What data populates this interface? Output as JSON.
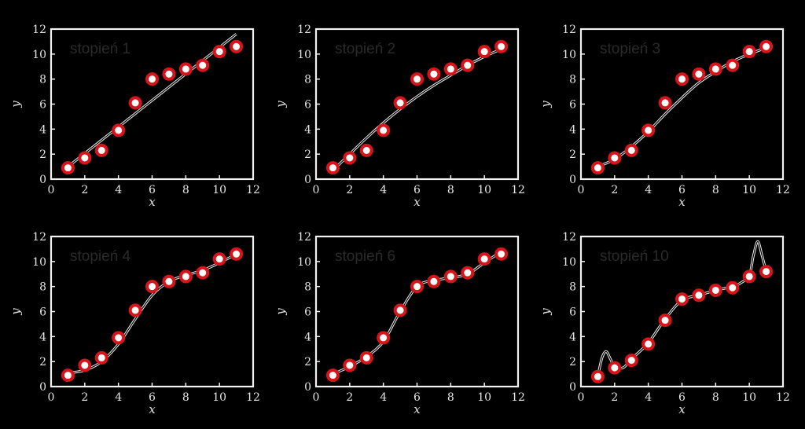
{
  "chart_data": [
    {
      "type": "line",
      "title": "stopień 1",
      "xlabel": "x",
      "ylabel": "y",
      "xlim": [
        0,
        12
      ],
      "ylim": [
        0,
        12
      ],
      "xticks": [
        0,
        2,
        4,
        6,
        8,
        10,
        12
      ],
      "yticks": [
        0,
        2,
        4,
        6,
        8,
        10,
        12
      ],
      "points": {
        "x": [
          1,
          2,
          3,
          4,
          5,
          6,
          7,
          8,
          9,
          10,
          11
        ],
        "y": [
          0.9,
          1.7,
          2.3,
          3.9,
          6.1,
          8.0,
          8.4,
          8.8,
          9.1,
          10.2,
          10.6
        ]
      },
      "fit": {
        "x": [
          1,
          11
        ],
        "y": [
          1.0,
          11.6
        ]
      }
    },
    {
      "type": "line",
      "title": "stopień 2",
      "xlabel": "x",
      "ylabel": "y",
      "xlim": [
        0,
        12
      ],
      "ylim": [
        0,
        12
      ],
      "xticks": [
        0,
        2,
        4,
        6,
        8,
        10,
        12
      ],
      "yticks": [
        0,
        2,
        4,
        6,
        8,
        10,
        12
      ],
      "points": {
        "x": [
          1,
          2,
          3,
          4,
          5,
          6,
          7,
          8,
          9,
          10,
          11
        ],
        "y": [
          0.9,
          1.7,
          2.3,
          3.9,
          6.1,
          8.0,
          8.4,
          8.8,
          9.1,
          10.2,
          10.6
        ]
      },
      "fit": {
        "x": [
          1,
          2,
          3,
          4,
          5,
          6,
          7,
          8,
          9,
          10,
          11
        ],
        "y": [
          0.7,
          2.0,
          3.3,
          4.5,
          5.6,
          6.6,
          7.5,
          8.3,
          9.1,
          9.8,
          10.4
        ]
      }
    },
    {
      "type": "line",
      "title": "stopień 3",
      "xlabel": "x",
      "ylabel": "y",
      "xlim": [
        0,
        12
      ],
      "ylim": [
        0,
        12
      ],
      "xticks": [
        0,
        2,
        4,
        6,
        8,
        10,
        12
      ],
      "yticks": [
        0,
        2,
        4,
        6,
        8,
        10,
        12
      ],
      "points": {
        "x": [
          1,
          2,
          3,
          4,
          5,
          6,
          7,
          8,
          9,
          10,
          11
        ],
        "y": [
          0.9,
          1.7,
          2.3,
          3.9,
          6.1,
          8.0,
          8.4,
          8.8,
          9.1,
          10.2,
          10.6
        ]
      },
      "fit": {
        "x": [
          1,
          2,
          3,
          4,
          5,
          6,
          7,
          8,
          9,
          10,
          11
        ],
        "y": [
          1.0,
          1.6,
          2.6,
          3.8,
          5.2,
          6.5,
          7.7,
          8.6,
          9.4,
          10.0,
          10.5
        ]
      }
    },
    {
      "type": "line",
      "title": "stopień 4",
      "xlabel": "x",
      "ylabel": "y",
      "xlim": [
        0,
        12
      ],
      "ylim": [
        0,
        12
      ],
      "xticks": [
        0,
        2,
        4,
        6,
        8,
        10,
        12
      ],
      "yticks": [
        0,
        2,
        4,
        6,
        8,
        10,
        12
      ],
      "points": {
        "x": [
          1,
          2,
          3,
          4,
          5,
          6,
          7,
          8,
          9,
          10,
          11
        ],
        "y": [
          0.9,
          1.7,
          2.3,
          3.9,
          6.1,
          8.0,
          8.4,
          8.8,
          9.1,
          10.2,
          10.6
        ]
      },
      "fit": {
        "x": [
          1,
          2,
          3,
          4,
          5,
          6,
          7,
          8,
          9,
          10,
          11
        ],
        "y": [
          1.1,
          1.3,
          2.0,
          3.4,
          5.4,
          7.3,
          8.4,
          8.9,
          9.3,
          9.9,
          10.6
        ]
      }
    },
    {
      "type": "line",
      "title": "stopień 6",
      "xlabel": "x",
      "ylabel": "y",
      "xlim": [
        0,
        12
      ],
      "ylim": [
        0,
        12
      ],
      "xticks": [
        0,
        2,
        4,
        6,
        8,
        10,
        12
      ],
      "yticks": [
        0,
        2,
        4,
        6,
        8,
        10,
        12
      ],
      "points": {
        "x": [
          1,
          2,
          3,
          4,
          5,
          6,
          7,
          8,
          9,
          10,
          11
        ],
        "y": [
          0.9,
          1.7,
          2.3,
          3.9,
          6.1,
          8.0,
          8.4,
          8.8,
          9.1,
          10.2,
          10.6
        ]
      },
      "fit": {
        "x": [
          1,
          2,
          3,
          4,
          5,
          6,
          7,
          8,
          9,
          10,
          11
        ],
        "y": [
          1.0,
          1.6,
          2.4,
          3.6,
          6.0,
          8.0,
          8.5,
          8.7,
          9.0,
          9.9,
          10.8
        ]
      }
    },
    {
      "type": "line",
      "title": "stopień 10",
      "xlabel": "x",
      "ylabel": "y",
      "xlim": [
        0,
        12
      ],
      "ylim": [
        0,
        12
      ],
      "xticks": [
        0,
        2,
        4,
        6,
        8,
        10,
        12
      ],
      "yticks": [
        0,
        2,
        4,
        6,
        8,
        10,
        12
      ],
      "points": {
        "x": [
          1,
          2,
          3,
          4,
          5,
          6,
          7,
          8,
          9,
          10,
          11
        ],
        "y": [
          0.8,
          1.5,
          2.1,
          3.4,
          5.3,
          7.0,
          7.3,
          7.7,
          7.9,
          8.8,
          9.2
        ]
      },
      "fit": {
        "x": [
          1,
          1.25,
          1.5,
          1.75,
          2,
          2.5,
          3,
          4,
          5,
          6,
          7,
          8,
          9,
          9.5,
          10,
          10.25,
          10.5,
          10.75,
          11
        ],
        "y": [
          0.8,
          2.3,
          2.8,
          2.2,
          1.6,
          1.5,
          2.2,
          3.5,
          5.4,
          6.9,
          7.3,
          7.7,
          8.0,
          8.3,
          8.9,
          10.5,
          11.6,
          10.5,
          9.2
        ]
      }
    }
  ]
}
